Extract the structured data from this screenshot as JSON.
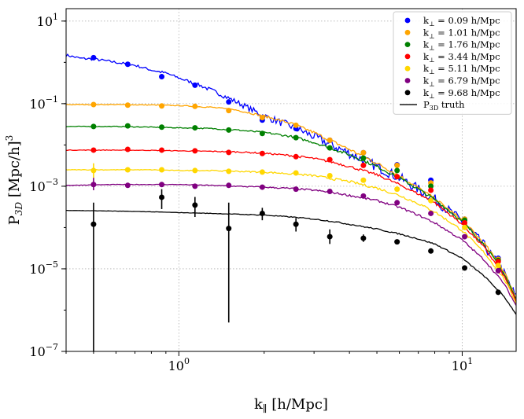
{
  "chart_data": {
    "type": "line",
    "xscale": "log",
    "yscale": "log",
    "xlabel": "k∥ [h/Mpc]",
    "ylabel": "P3D [Mpc/h]³",
    "xlim": [
      0.4,
      15.5
    ],
    "ylim": [
      1e-07,
      20
    ],
    "grid": true,
    "legend_position": "top-right",
    "x_ticks": [
      {
        "value": 1,
        "base": "10",
        "exp": "0"
      },
      {
        "value": 10,
        "base": "10",
        "exp": "1"
      }
    ],
    "y_ticks": [
      {
        "value": 10,
        "base": "10",
        "exp": "1"
      },
      {
        "value": 0.1,
        "base": "10",
        "exp": "−1"
      },
      {
        "value": 0.001,
        "base": "10",
        "exp": "−3"
      },
      {
        "value": 1e-05,
        "base": "10",
        "exp": "−5"
      },
      {
        "value": 1e-07,
        "base": "10",
        "exp": "−7"
      }
    ],
    "series": [
      {
        "name": "k⊥ = 0.09 h/Mpc",
        "color": "#0000ff",
        "noise": 0.25,
        "truth": [
          [
            0.4,
            1.5
          ],
          [
            0.45,
            1.25
          ],
          [
            0.5,
            1.2
          ],
          [
            0.55,
            1.1
          ],
          [
            0.6,
            1.0
          ],
          [
            0.7,
            0.85
          ],
          [
            0.8,
            0.65
          ],
          [
            0.9,
            0.55
          ],
          [
            1.0,
            0.42
          ],
          [
            1.2,
            0.27
          ],
          [
            1.4,
            0.17
          ],
          [
            1.6,
            0.11
          ],
          [
            2.0,
            0.05
          ],
          [
            2.5,
            0.028
          ],
          [
            3.0,
            0.016
          ],
          [
            3.5,
            0.0095
          ],
          [
            4.0,
            0.0063
          ],
          [
            5.0,
            0.003
          ],
          [
            6.0,
            0.0016
          ],
          [
            7.0,
            0.00085
          ],
          [
            8.0,
            0.00048
          ],
          [
            10.0,
            0.00014
          ],
          [
            12.0,
            3.5e-05
          ],
          [
            14.0,
            8e-06
          ],
          [
            15.5,
            2e-06
          ]
        ],
        "points": [
          {
            "x": 0.5,
            "y": 1.3
          },
          {
            "x": 0.66,
            "y": 0.9
          },
          {
            "x": 0.87,
            "y": 0.45
          },
          {
            "x": 1.14,
            "y": 0.28
          },
          {
            "x": 1.5,
            "y": 0.11
          },
          {
            "x": 1.97,
            "y": 0.04
          },
          {
            "x": 2.59,
            "y": 0.025
          },
          {
            "x": 3.41,
            "y": 0.013
          },
          {
            "x": 4.48,
            "y": 0.0065
          },
          {
            "x": 5.89,
            "y": 0.0033
          },
          {
            "x": 7.75,
            "y": 0.0014
          },
          {
            "x": 10.2,
            "y": 0.00016
          },
          {
            "x": 13.4,
            "y": 1.8e-05
          }
        ]
      },
      {
        "name": "k⊥ = 1.01 h/Mpc",
        "color": "#ffa500",
        "noise": 0.08,
        "truth": [
          [
            0.4,
            0.095
          ],
          [
            0.6,
            0.095
          ],
          [
            0.8,
            0.093
          ],
          [
            1.0,
            0.09
          ],
          [
            1.3,
            0.082
          ],
          [
            1.6,
            0.07
          ],
          [
            2.0,
            0.05
          ],
          [
            2.5,
            0.033
          ],
          [
            3.0,
            0.02
          ],
          [
            3.5,
            0.012
          ],
          [
            4.0,
            0.0078
          ],
          [
            5.0,
            0.0036
          ],
          [
            6.0,
            0.0018
          ],
          [
            7.0,
            0.0009
          ],
          [
            8.0,
            0.0005
          ],
          [
            10.0,
            0.00015
          ],
          [
            12.0,
            4e-05
          ],
          [
            14.0,
            9e-06
          ],
          [
            15.5,
            2e-06
          ]
        ],
        "points": [
          {
            "x": 0.5,
            "y": 0.095
          },
          {
            "x": 0.66,
            "y": 0.092
          },
          {
            "x": 0.87,
            "y": 0.088
          },
          {
            "x": 1.14,
            "y": 0.086
          },
          {
            "x": 1.5,
            "y": 0.068
          },
          {
            "x": 1.97,
            "y": 0.046
          },
          {
            "x": 2.59,
            "y": 0.03
          },
          {
            "x": 3.41,
            "y": 0.013
          },
          {
            "x": 4.48,
            "y": 0.0065
          },
          {
            "x": 5.89,
            "y": 0.0032
          },
          {
            "x": 7.75,
            "y": 0.0012
          },
          {
            "x": 10.2,
            "y": 0.00016
          },
          {
            "x": 13.4,
            "y": 1.7e-05
          }
        ]
      },
      {
        "name": "k⊥ = 1.76 h/Mpc",
        "color": "#008000",
        "noise": 0.07,
        "truth": [
          [
            0.4,
            0.028
          ],
          [
            0.6,
            0.028
          ],
          [
            0.8,
            0.027
          ],
          [
            1.0,
            0.026
          ],
          [
            1.3,
            0.025
          ],
          [
            1.6,
            0.023
          ],
          [
            2.0,
            0.02
          ],
          [
            2.5,
            0.016
          ],
          [
            3.0,
            0.0115
          ],
          [
            3.5,
            0.008
          ],
          [
            4.0,
            0.0058
          ],
          [
            5.0,
            0.003
          ],
          [
            6.0,
            0.0016
          ],
          [
            7.0,
            0.00085
          ],
          [
            8.0,
            0.00048
          ],
          [
            10.0,
            0.00014
          ],
          [
            12.0,
            3.7e-05
          ],
          [
            14.0,
            8e-06
          ],
          [
            15.5,
            1.8e-06
          ]
        ],
        "points": [
          {
            "x": 0.5,
            "y": 0.028
          },
          {
            "x": 0.66,
            "y": 0.029
          },
          {
            "x": 0.87,
            "y": 0.027
          },
          {
            "x": 1.14,
            "y": 0.026
          },
          {
            "x": 1.5,
            "y": 0.023
          },
          {
            "x": 1.97,
            "y": 0.019
          },
          {
            "x": 2.59,
            "y": 0.015
          },
          {
            "x": 3.41,
            "y": 0.0085
          },
          {
            "x": 4.48,
            "y": 0.0048
          },
          {
            "x": 5.89,
            "y": 0.0024
          },
          {
            "x": 7.75,
            "y": 0.001
          },
          {
            "x": 10.2,
            "y": 0.00015
          },
          {
            "x": 13.4,
            "y": 1.6e-05
          }
        ]
      },
      {
        "name": "k⊥ = 3.44 h/Mpc",
        "color": "#ff0000",
        "noise": 0.06,
        "truth": [
          [
            0.4,
            0.0075
          ],
          [
            0.6,
            0.0075
          ],
          [
            0.8,
            0.0074
          ],
          [
            1.0,
            0.0072
          ],
          [
            1.3,
            0.007
          ],
          [
            1.6,
            0.0068
          ],
          [
            2.0,
            0.0063
          ],
          [
            2.5,
            0.0055
          ],
          [
            3.0,
            0.0047
          ],
          [
            3.5,
            0.0038
          ],
          [
            4.0,
            0.003
          ],
          [
            5.0,
            0.0019
          ],
          [
            6.0,
            0.0011
          ],
          [
            7.0,
            0.00065
          ],
          [
            8.0,
            0.0004
          ],
          [
            10.0,
            0.00012
          ],
          [
            12.0,
            3.2e-05
          ],
          [
            14.0,
            7e-06
          ],
          [
            15.5,
            1.6e-06
          ]
        ],
        "points": [
          {
            "x": 0.5,
            "y": 0.0075
          },
          {
            "x": 0.66,
            "y": 0.0078
          },
          {
            "x": 0.87,
            "y": 0.0075
          },
          {
            "x": 1.14,
            "y": 0.0072
          },
          {
            "x": 1.5,
            "y": 0.0066
          },
          {
            "x": 1.97,
            "y": 0.0062
          },
          {
            "x": 2.59,
            "y": 0.0052
          },
          {
            "x": 3.41,
            "y": 0.0044
          },
          {
            "x": 4.48,
            "y": 0.0032
          },
          {
            "x": 5.89,
            "y": 0.0017
          },
          {
            "x": 7.75,
            "y": 0.0008
          },
          {
            "x": 10.2,
            "y": 0.00013
          },
          {
            "x": 13.4,
            "y": 1.5e-05
          }
        ]
      },
      {
        "name": "k⊥ = 5.11 h/Mpc",
        "color": "#ffd700",
        "noise": 0.06,
        "truth": [
          [
            0.4,
            0.0025
          ],
          [
            0.6,
            0.0025
          ],
          [
            0.8,
            0.0025
          ],
          [
            1.0,
            0.0024
          ],
          [
            1.3,
            0.0024
          ],
          [
            1.6,
            0.0023
          ],
          [
            2.0,
            0.0022
          ],
          [
            2.5,
            0.002
          ],
          [
            3.0,
            0.0018
          ],
          [
            3.5,
            0.0015
          ],
          [
            4.0,
            0.0013
          ],
          [
            5.0,
            0.0009
          ],
          [
            6.0,
            0.0006
          ],
          [
            7.0,
            0.00038
          ],
          [
            8.0,
            0.00024
          ],
          [
            10.0,
            8.5e-05
          ],
          [
            12.0,
            2.4e-05
          ],
          [
            14.0,
            6e-06
          ],
          [
            15.5,
            1.5e-06
          ]
        ],
        "points": [
          {
            "x": 0.5,
            "y": 0.0024,
            "err": [
              0.0016,
              0.0036
            ]
          },
          {
            "x": 0.66,
            "y": 0.0025
          },
          {
            "x": 0.87,
            "y": 0.0025
          },
          {
            "x": 1.14,
            "y": 0.0024
          },
          {
            "x": 1.5,
            "y": 0.0023
          },
          {
            "x": 1.97,
            "y": 0.0022
          },
          {
            "x": 2.59,
            "y": 0.0021
          },
          {
            "x": 3.41,
            "y": 0.0018
          },
          {
            "x": 4.48,
            "y": 0.0014
          },
          {
            "x": 5.89,
            "y": 0.00085
          },
          {
            "x": 7.75,
            "y": 0.00045
          },
          {
            "x": 10.2,
            "y": 0.0001
          },
          {
            "x": 13.4,
            "y": 1.2e-05
          }
        ]
      },
      {
        "name": "k⊥ = 6.79 h/Mpc",
        "color": "#800080",
        "noise": 0.05,
        "truth": [
          [
            0.4,
            0.00105
          ],
          [
            0.6,
            0.0011
          ],
          [
            0.8,
            0.0011
          ],
          [
            1.0,
            0.0011
          ],
          [
            1.3,
            0.00105
          ],
          [
            1.6,
            0.001
          ],
          [
            2.0,
            0.00095
          ],
          [
            2.5,
            0.00088
          ],
          [
            3.0,
            0.0008
          ],
          [
            3.5,
            0.0007
          ],
          [
            4.0,
            0.0006
          ],
          [
            5.0,
            0.00045
          ],
          [
            6.0,
            0.00031
          ],
          [
            7.0,
            0.0002
          ],
          [
            8.0,
            0.00013
          ],
          [
            10.0,
            5e-05
          ],
          [
            12.0,
            1.6e-05
          ],
          [
            14.0,
            4.5e-06
          ],
          [
            15.5,
            1.3e-06
          ]
        ],
        "points": [
          {
            "x": 0.5,
            "y": 0.0011,
            "err": [
              0.0008,
              0.0016
            ]
          },
          {
            "x": 0.66,
            "y": 0.00105
          },
          {
            "x": 0.87,
            "y": 0.0011
          },
          {
            "x": 1.14,
            "y": 0.001
          },
          {
            "x": 1.5,
            "y": 0.00105
          },
          {
            "x": 1.97,
            "y": 0.00095
          },
          {
            "x": 2.59,
            "y": 0.00085
          },
          {
            "x": 3.41,
            "y": 0.00075
          },
          {
            "x": 4.48,
            "y": 0.00058
          },
          {
            "x": 5.89,
            "y": 0.0004
          },
          {
            "x": 7.75,
            "y": 0.00022
          },
          {
            "x": 10.2,
            "y": 6e-05
          },
          {
            "x": 13.4,
            "y": 9e-06
          }
        ]
      },
      {
        "name": "k⊥ = 9.68 h/Mpc",
        "color": "#000000",
        "noise": 0.03,
        "truth": [
          [
            0.4,
            0.00026
          ],
          [
            0.6,
            0.00025
          ],
          [
            0.8,
            0.00024
          ],
          [
            1.0,
            0.00023
          ],
          [
            1.3,
            0.00022
          ],
          [
            1.6,
            0.00021
          ],
          [
            2.0,
            0.0002
          ],
          [
            2.5,
            0.00018
          ],
          [
            3.0,
            0.00016
          ],
          [
            3.5,
            0.00014
          ],
          [
            4.0,
            0.00012
          ],
          [
            5.0,
            9.2e-05
          ],
          [
            6.0,
            7e-05
          ],
          [
            7.0,
            5.3e-05
          ],
          [
            8.0,
            4e-05
          ],
          [
            10.0,
            1.8e-05
          ],
          [
            12.0,
            6.5e-06
          ],
          [
            14.0,
            2.2e-06
          ],
          [
            15.5,
            8e-07
          ]
        ],
        "points": [
          {
            "x": 0.5,
            "y": 0.00012,
            "err": [
              1e-07,
              0.0004
            ]
          },
          {
            "x": 0.87,
            "y": 0.00054,
            "err": [
              0.00028,
              0.00085
            ]
          },
          {
            "x": 1.14,
            "y": 0.00035,
            "err": [
              0.00018,
              0.00055
            ]
          },
          {
            "x": 1.5,
            "y": 9.5e-05,
            "err": [
              5e-07,
              0.0004
            ]
          },
          {
            "x": 1.97,
            "y": 0.00022,
            "err": [
              0.00015,
              0.0003
            ]
          },
          {
            "x": 2.59,
            "y": 0.00012,
            "err": [
              8e-05,
              0.00017
            ]
          },
          {
            "x": 3.41,
            "y": 6e-05,
            "err": [
              4e-05,
              9e-05
            ]
          },
          {
            "x": 4.48,
            "y": 5.5e-05,
            "err": [
              4.5e-05,
              6.8e-05
            ]
          },
          {
            "x": 5.89,
            "y": 4.5e-05
          },
          {
            "x": 7.75,
            "y": 2.7e-05
          },
          {
            "x": 10.2,
            "y": 1.05e-05
          },
          {
            "x": 13.4,
            "y": 2.7e-06
          }
        ]
      }
    ],
    "legend": {
      "series_entries": [
        {
          "prefix": "k",
          "sub": "⊥",
          "rest": " = 0.09 h/Mpc",
          "color": "#0000ff"
        },
        {
          "prefix": "k",
          "sub": "⊥",
          "rest": " = 1.01 h/Mpc",
          "color": "#ffa500"
        },
        {
          "prefix": "k",
          "sub": "⊥",
          "rest": " = 1.76 h/Mpc",
          "color": "#008000"
        },
        {
          "prefix": "k",
          "sub": "⊥",
          "rest": " = 3.44 h/Mpc",
          "color": "#ff0000"
        },
        {
          "prefix": "k",
          "sub": "⊥",
          "rest": " = 5.11 h/Mpc",
          "color": "#ffd700"
        },
        {
          "prefix": "k",
          "sub": "⊥",
          "rest": " = 6.79 h/Mpc",
          "color": "#800080"
        },
        {
          "prefix": "k",
          "sub": "⊥",
          "rest": " = 9.68 h/Mpc",
          "color": "#000000"
        }
      ],
      "truth_entry": {
        "prefix": "P",
        "sub": "3D",
        "rest": " truth",
        "color": "#000000"
      }
    },
    "axis_labels": {
      "x": {
        "main": "k",
        "sub": "∥",
        "rest": "  [h/Mpc]"
      },
      "y": {
        "main": "P",
        "sub": "3D",
        "rest": " [Mpc/h]",
        "sup": "3"
      }
    }
  }
}
